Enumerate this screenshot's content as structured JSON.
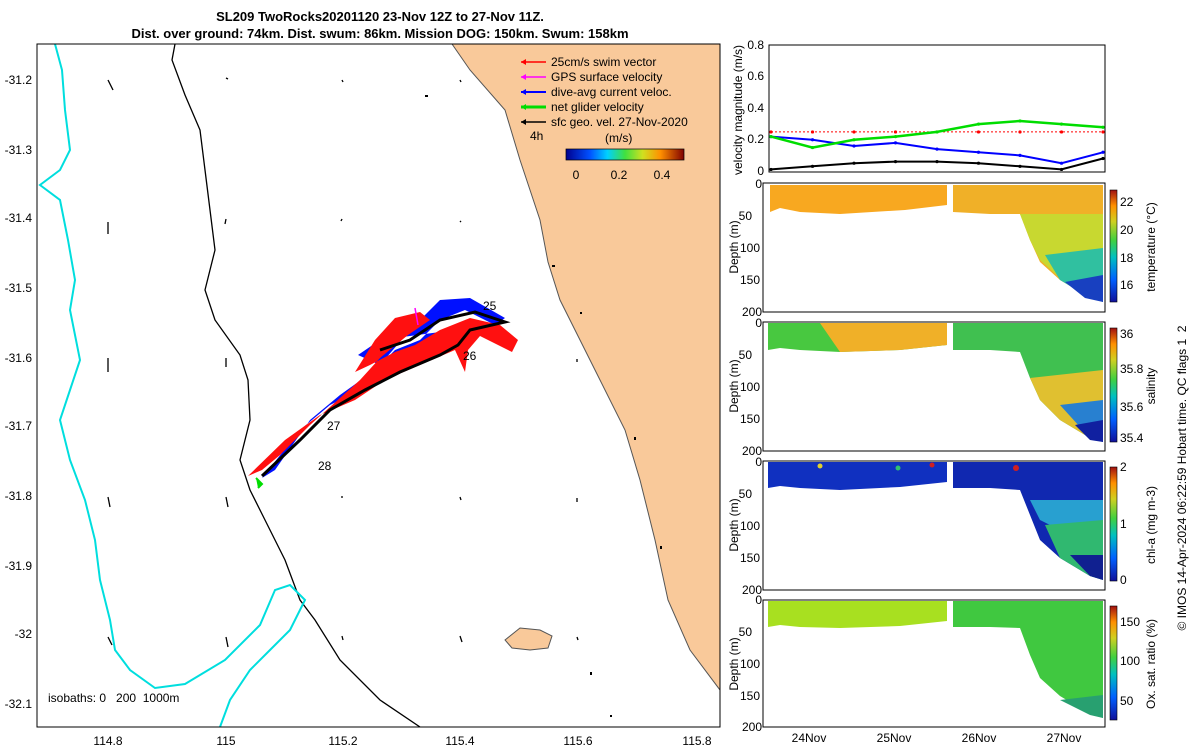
{
  "title_line1": "SL209 TwoRocks20201120 23-Nov 12Z to 27-Nov 11Z.",
  "title_line2": "Dist. over ground: 74km. Dist. swum: 86km. Mission DOG: 150km. Swum: 158km",
  "map": {
    "x_ticks": [
      "114.8",
      "115",
      "115.2",
      "115.4",
      "115.6",
      "115.8"
    ],
    "y_ticks": [
      "-31.2",
      "-31.3",
      "-31.4",
      "-31.5",
      "-31.6",
      "-31.7",
      "-31.8",
      "-31.9",
      "-32",
      "-32.1"
    ],
    "legend": [
      {
        "label": "25cm/s swim vector",
        "color": "#ff0000"
      },
      {
        "label": "GPS surface velocity",
        "color": "#ff00ff"
      },
      {
        "label": "dive-avg current veloc.",
        "color": "#0000ff"
      },
      {
        "label": "net glider velocity",
        "color": "#00dd00"
      },
      {
        "label": "sfc geo. vel. 27-Nov-2020",
        "color": "#000000"
      }
    ],
    "colorbar_label": "(m/s)",
    "colorbar_ticks": [
      "0",
      "0.2",
      "0.4"
    ],
    "age_label": "4h",
    "day_labels": [
      "25",
      "26",
      "27",
      "28"
    ],
    "isobaths_label": "isobaths: 0   200  1000m",
    "colors": {
      "land": "#f9c99a",
      "isobath200": "#000000",
      "isobath1000": "#00e5e5"
    }
  },
  "velocity_panel": {
    "ylabel": "velocity magnitude (m/s)",
    "y_ticks": [
      "0",
      "0.2",
      "0.4",
      "0.6",
      "0.8"
    ]
  },
  "panels": [
    {
      "ylabel": "Depth (m)",
      "cblabel": "temperature (°C)",
      "cb_ticks": [
        "16",
        "18",
        "20",
        "22"
      ]
    },
    {
      "ylabel": "Depth (m)",
      "cblabel": "salinity",
      "cb_ticks": [
        "35.4",
        "35.6",
        "35.8",
        "36"
      ]
    },
    {
      "ylabel": "Depth (m)",
      "cblabel": "chl-a (mg m-3)",
      "cb_ticks": [
        "0",
        "1",
        "2"
      ]
    },
    {
      "ylabel": "Depth (m)",
      "cblabel": "Ox. sat. ratio (%)",
      "cb_ticks": [
        "50",
        "100",
        "150"
      ]
    }
  ],
  "depth_ticks": [
    "0",
    "50",
    "100",
    "150",
    "200"
  ],
  "x_date_ticks": [
    "24Nov",
    "25Nov",
    "26Nov",
    "27Nov"
  ],
  "side_note": "© IMOS 14-Apr-2024 06:22:59 Hobart time. QC flags 1  2",
  "chart_data": {
    "type": "line",
    "title": "SL209 TwoRocks20201120 23-Nov 12Z to 27-Nov 11Z.",
    "ylabel": "velocity magnitude (m/s)",
    "ylim": [
      0,
      0.8
    ],
    "x": [
      "23-Nov 12Z",
      "24-Nov 00Z",
      "24-Nov 12Z",
      "25-Nov 00Z",
      "25-Nov 12Z",
      "26-Nov 00Z",
      "26-Nov 12Z",
      "27-Nov 00Z",
      "27-Nov 11Z"
    ],
    "series": [
      {
        "name": "25cm/s swim vector",
        "color": "#ff0000",
        "values": [
          0.25,
          0.25,
          0.25,
          0.25,
          0.25,
          0.25,
          0.25,
          0.25,
          0.25
        ]
      },
      {
        "name": "dive-avg current veloc.",
        "color": "#0000ff",
        "values": [
          0.22,
          0.2,
          0.16,
          0.18,
          0.14,
          0.12,
          0.1,
          0.05,
          0.12
        ]
      },
      {
        "name": "net glider velocity",
        "color": "#00dd00",
        "values": [
          0.22,
          0.15,
          0.2,
          0.22,
          0.25,
          0.3,
          0.32,
          0.3,
          0.28
        ]
      },
      {
        "name": "sfc geo. vel. 27-Nov-2020",
        "color": "#000000",
        "values": [
          0.01,
          0.03,
          0.05,
          0.06,
          0.06,
          0.05,
          0.03,
          0.01,
          0.08
        ]
      }
    ]
  }
}
